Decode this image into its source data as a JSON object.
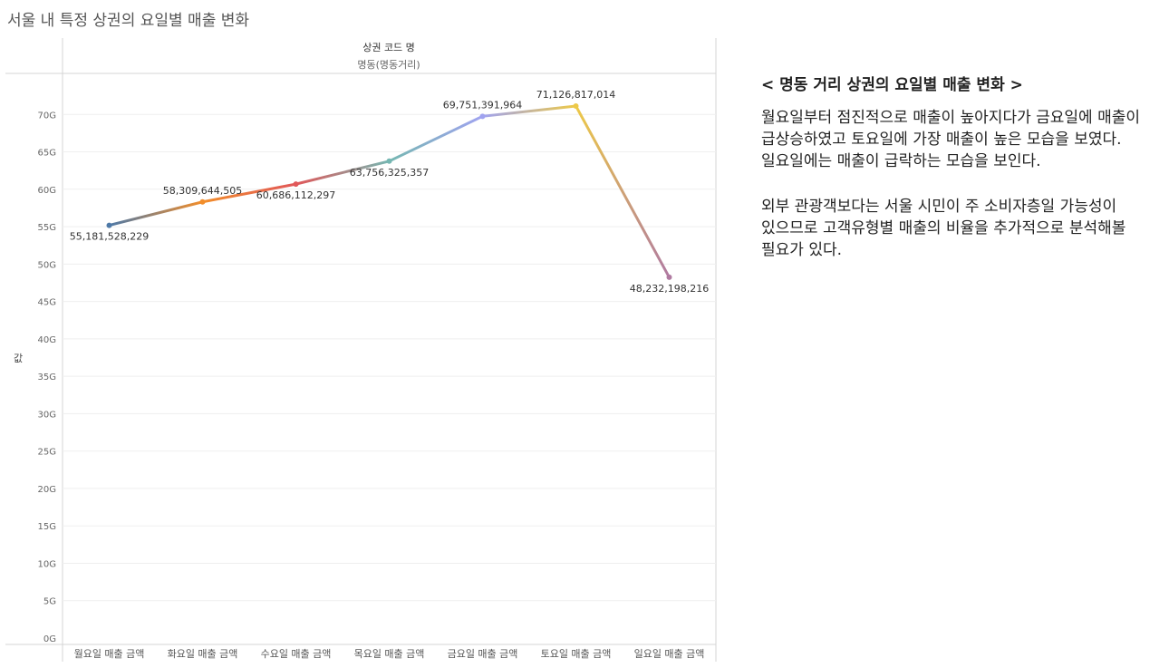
{
  "page": {
    "title": "서울 내 특정 상권의 요일별 매출 변화"
  },
  "chart_header": {
    "field_label": "상권 코드 명",
    "field_value": "명동(명동거리)"
  },
  "chart_data": {
    "type": "line",
    "categories": [
      "월요일 매출 금액",
      "화요일 매출 금액",
      "수요일 매출 금액",
      "목요일 매출 금액",
      "금요일 매출 금액",
      "토요일 매출 금액",
      "일요일 매출 금액"
    ],
    "values": [
      55181528229,
      58309644505,
      60686112297,
      63756325357,
      69751391964,
      71126817014,
      48232198216
    ],
    "data_labels": [
      "55,181,528,229",
      "58,309,644,505",
      "60,686,112,297",
      "63,756,325,357",
      "69,751,391,964",
      "71,126,817,014",
      "48,232,198,216"
    ],
    "point_colors": [
      "#4e79a7",
      "#f28e2b",
      "#e15759",
      "#76b7b2",
      "#a0a3f0",
      "#edc948",
      "#b07aa1"
    ],
    "ylabel": "값",
    "ylim": [
      0,
      75000000000
    ],
    "yticks": [
      0,
      5000000000,
      10000000000,
      15000000000,
      20000000000,
      25000000000,
      30000000000,
      35000000000,
      40000000000,
      45000000000,
      50000000000,
      55000000000,
      60000000000,
      65000000000,
      70000000000
    ],
    "ytick_labels": [
      "0G",
      "5G",
      "10G",
      "15G",
      "20G",
      "25G",
      "30G",
      "35G",
      "40G",
      "45G",
      "50G",
      "55G",
      "60G",
      "65G",
      "70G"
    ],
    "grid": true
  },
  "panel": {
    "heading": "< 명동 거리 상권의 요일별 매출 변화 >",
    "paragraphs": [
      "월요일부터 점진적으로 매출이 높아지다가 금요일에 매출이 급상승하였고 토요일에 가장 매출이 높은 모습을 보였다. 일요일에는 매출이 급락하는 모습을 보인다.",
      "외부 관광객보다는 서울 시민이 주 소비자층일 가능성이 있으므로 고객유형별 매출의 비율을 추가적으로 분석해볼 필요가 있다."
    ]
  }
}
